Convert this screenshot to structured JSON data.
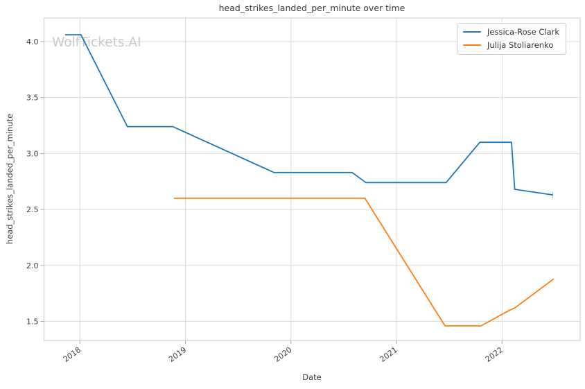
{
  "chart_data": {
    "type": "line",
    "title": "head_strikes_landed_per_minute over time",
    "xlabel": "Date",
    "ylabel": "head_strikes_landed_per_minute",
    "watermark": "WolfTickets.AI",
    "xlim": [
      2017.66,
      2022.74
    ],
    "ylim": [
      1.33,
      4.21
    ],
    "x_ticks": [
      2018,
      2019,
      2020,
      2021,
      2022
    ],
    "x_tick_labels": [
      "2018",
      "2019",
      "2020",
      "2021",
      "2022"
    ],
    "y_ticks": [
      1.5,
      2.0,
      2.5,
      3.0,
      3.5,
      4.0
    ],
    "y_tick_labels": [
      "1.5",
      "2.0",
      "2.5",
      "3.0",
      "3.5",
      "4.0"
    ],
    "grid": true,
    "legend": {
      "position": "upper right"
    },
    "colors": {
      "grid": "#dcdcdc",
      "spine": "#d2d2d2",
      "tick": "#a6a6a6",
      "tick_text": "#3d3d3d",
      "watermark": "#c9c9c9"
    },
    "series": [
      {
        "name": "Jessica-Rose Clark",
        "color": "#1f77b4",
        "end_marker": "tick",
        "x": [
          2017.86,
          2018.01,
          2018.45,
          2018.88,
          2019.84,
          2020.58,
          2020.71,
          2021.47,
          2021.79,
          2022.09,
          2022.12,
          2022.48
        ],
        "y": [
          4.06,
          4.06,
          3.24,
          3.24,
          2.83,
          2.83,
          2.74,
          2.74,
          3.1,
          3.1,
          2.68,
          2.63
        ]
      },
      {
        "name": "Julija Stoliarenko",
        "color": "#ff7f0e",
        "end_marker": "none",
        "x": [
          2018.89,
          2020.7,
          2021.46,
          2021.8,
          2022.07,
          2022.12,
          2022.49
        ],
        "y": [
          2.6,
          2.6,
          1.46,
          1.46,
          1.6,
          1.62,
          1.88
        ]
      }
    ]
  }
}
